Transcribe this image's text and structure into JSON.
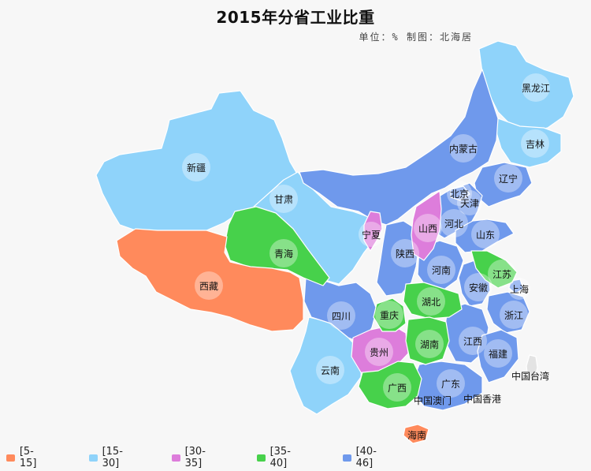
{
  "title": "2015年分省工业比重",
  "subtitle": "单位：%  制图：北海居",
  "colors": {
    "c5_15": "#ff8a5c",
    "c15_30": "#8fd3fa",
    "c30_35": "#dd7ddb",
    "c35_40": "#47d14b",
    "c40_46": "#6f99ec",
    "taiwan": "#e3e3e3"
  },
  "legend": [
    {
      "label": "[5-15]",
      "color": "#ff8a5c"
    },
    {
      "label": "[15-30]",
      "color": "#8fd3fa"
    },
    {
      "label": "[30-35]",
      "color": "#dd7ddb"
    },
    {
      "label": "[35-40]",
      "color": "#47d14b"
    },
    {
      "label": "[40-46]",
      "color": "#6f99ec"
    }
  ],
  "regions": {
    "heilongjiang": "黑龙江",
    "jilin": "吉林",
    "liaoning": "辽宁",
    "neimenggu": "内蒙古",
    "xinjiang": "新疆",
    "gansu": "甘肃",
    "beijing": "北京",
    "tianjin": "天津",
    "hebei": "河北",
    "shanxi": "山西",
    "shandong": "山东",
    "ningxia": "宁夏",
    "qinghai": "青海",
    "shaanxi": "陕西",
    "henan": "河南",
    "jiangsu": "江苏",
    "anhui": "安徽",
    "shanghai": "上海",
    "xizang": "西藏",
    "sichuan": "四川",
    "hubei": "湖北",
    "chongqing": "重庆",
    "zhejiang": "浙江",
    "jiangxi": "江西",
    "hunan": "湖南",
    "guizhou": "贵州",
    "fujian": "福建",
    "yunnan": "云南",
    "guangxi": "广西",
    "guangdong": "广东",
    "taiwan": "中国台湾",
    "macau": "中国澳门",
    "hongkong": "中国香港",
    "hainan": "海南"
  }
}
